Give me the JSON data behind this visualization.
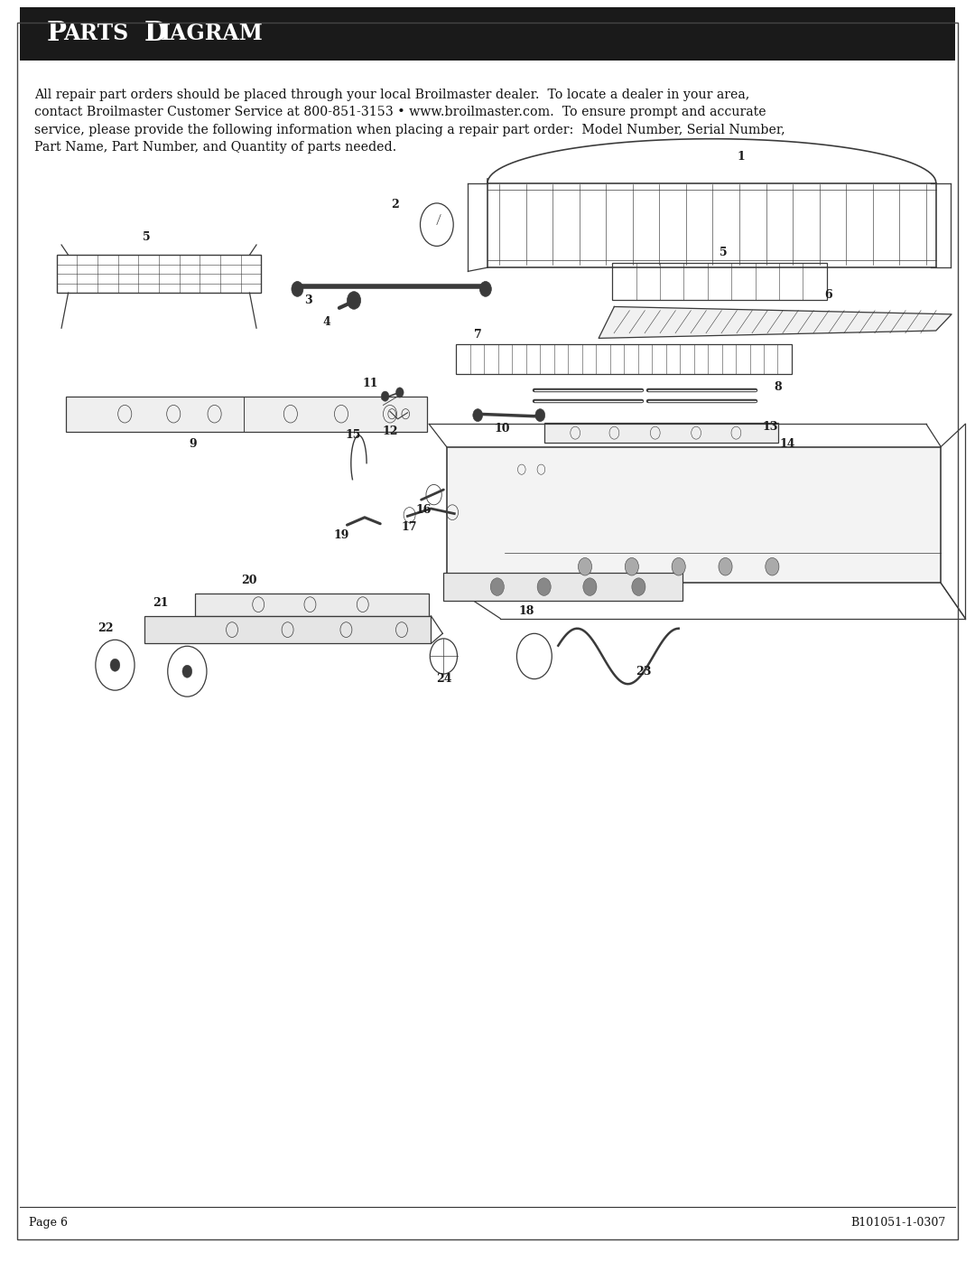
{
  "title_display": "Parts Diagram",
  "background_color": "#ffffff",
  "header_bg": "#1a1a1a",
  "header_text_color": "#ffffff",
  "body_text": "All repair part orders should be placed through your local Broilmaster dealer.  To locate a dealer in your area,\ncontact Broilmaster Customer Service at 800-851-3153 • www.broilmaster.com.  To ensure prompt and accurate\nservice, please provide the following information when placing a repair part order:  Model Number, Serial Number,\nPart Name, Part Number, and Quantity of parts needed.",
  "footer_left": "Page 6",
  "footer_right": "B101051-1-0307",
  "footer_line_color": "#333333"
}
